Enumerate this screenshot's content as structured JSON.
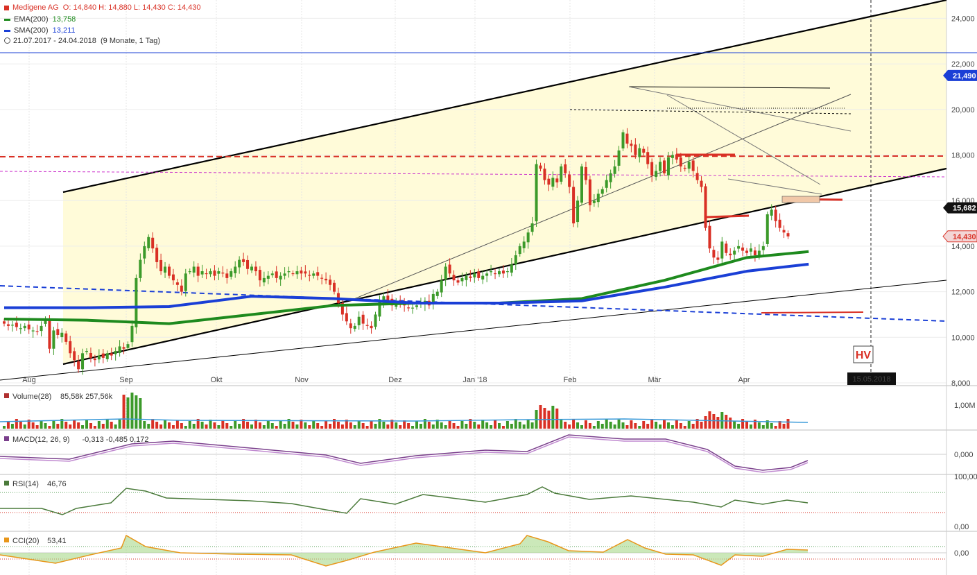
{
  "legend": {
    "instrument": "Medigene AG",
    "ohlc": "O: 14,840  H: 14,880  L: 14,430  C: 14,430",
    "ema_label": "EMA(200)",
    "ema_value": "13,758",
    "sma_label": "SMA(200)",
    "sma_value": "13,211",
    "range": "21.07.2017 - 24.04.2018",
    "range_detail": "(9 Monate, 1 Tag)"
  },
  "colors": {
    "up": "#3c9a2a",
    "down": "#d93025",
    "ema": "#1e8a1e",
    "sma": "#1a3fd6",
    "channel_fill": "#fffbd9",
    "macd": "#7a3f8c",
    "rsi": "#4a7a3a",
    "cci": "#e8961a"
  },
  "chart_data": {
    "type": "line",
    "x_labels": [
      "Aug",
      "Sep",
      "Okt",
      "Nov",
      "Dez",
      "Jan '18",
      "Feb",
      "Mär",
      "Apr"
    ],
    "x_marker_label": "15.05.2018",
    "annotation": "HV",
    "y_ticks": [
      "24,000",
      "22,000",
      "20,000",
      "18,000",
      "16,000",
      "14,000",
      "12,000",
      "10,000",
      "8,000"
    ],
    "ylim": [
      8,
      24.5
    ],
    "price_tags": [
      {
        "value": "21,490",
        "y": 21.49,
        "style": "blue"
      },
      {
        "value": "15,682",
        "y": 15.682,
        "style": "black"
      },
      {
        "value": "14,430",
        "y": 14.43,
        "style": "red"
      }
    ],
    "close": [
      10.6,
      10.5,
      10.55,
      10.45,
      10.4,
      10.5,
      10.35,
      10.3,
      10.25,
      10.5,
      10.8,
      9.5,
      10.3,
      10.1,
      10.2,
      9.8,
      9.3,
      9.0,
      8.6,
      9.3,
      9.4,
      9.1,
      9.0,
      9.2,
      9.1,
      9.3,
      9.2,
      9.4,
      9.6,
      9.5,
      9.7,
      10.5,
      12.6,
      13.4,
      14.0,
      14.4,
      13.9,
      13.3,
      12.9,
      13.1,
      12.7,
      12.5,
      12.3,
      12.0,
      12.8,
      12.9,
      13.1,
      12.7,
      12.9,
      12.8,
      12.9,
      12.7,
      12.9,
      12.8,
      12.6,
      12.9,
      13.1,
      13.4,
      13.3,
      13.0,
      13.1,
      12.9,
      12.5,
      12.6,
      12.7,
      12.8,
      12.6,
      12.7,
      12.8,
      12.9,
      12.8,
      12.9,
      12.8,
      12.8,
      12.7,
      12.8,
      12.7,
      12.6,
      12.5,
      12.3,
      12.0,
      11.5,
      11.0,
      10.7,
      10.4,
      10.5,
      10.9,
      10.6,
      10.5,
      10.4,
      11.0,
      11.6,
      11.8,
      11.6,
      11.4,
      11.6,
      11.5,
      11.4,
      11.3,
      11.3,
      11.4,
      11.5,
      11.6,
      11.4,
      11.9,
      12.0,
      12.5,
      13.1,
      12.8,
      12.5,
      12.4,
      12.6,
      12.7,
      12.6,
      12.8,
      12.6,
      12.7,
      12.8,
      12.9,
      12.8,
      12.9,
      12.8,
      12.9,
      13.2,
      13.6,
      14.0,
      14.2,
      14.6,
      15.0,
      17.6,
      17.4,
      16.9,
      16.7,
      17.0,
      16.8,
      17.5,
      17.2,
      16.6,
      15.0,
      16.0,
      17.5,
      16.9,
      15.8,
      16.0,
      16.3,
      16.5,
      16.9,
      17.2,
      17.5,
      18.2,
      19.0,
      18.5,
      18.4,
      18.0,
      18.3,
      18.1,
      17.6,
      17.1,
      17.3,
      17.7,
      17.2,
      17.9,
      18.0,
      17.8,
      17.5,
      17.4,
      17.7,
      17.3,
      16.9,
      16.6,
      14.8,
      13.9,
      13.5,
      13.4,
      14.2,
      13.7,
      13.6,
      13.8,
      14.0,
      13.8,
      13.7,
      13.9,
      13.6,
      13.8,
      14.0,
      15.4,
      15.6,
      15.1,
      14.8,
      14.6,
      14.43
    ],
    "series": [
      {
        "name": "EMA(200)",
        "x": [
          0,
          20,
          40,
          60,
          80,
          100,
          120,
          140,
          160,
          180,
          195
        ],
        "values": [
          10.8,
          10.75,
          10.6,
          11.0,
          11.4,
          11.5,
          11.5,
          11.7,
          12.5,
          13.5,
          13.76
        ]
      },
      {
        "name": "SMA(200)",
        "x": [
          0,
          20,
          40,
          60,
          80,
          100,
          120,
          140,
          160,
          180,
          195
        ],
        "values": [
          11.3,
          11.3,
          11.35,
          11.8,
          11.7,
          11.5,
          11.5,
          11.6,
          12.2,
          12.9,
          13.21
        ]
      }
    ],
    "subpanels": [
      {
        "name": "Volume(28)",
        "values_text": "85,58k  257,56k",
        "y_tick": "1,00M"
      },
      {
        "name": "MACD(12, 26, 9)",
        "values_text": "-0,313  -0,485  0,172",
        "y_tick": "0,000"
      },
      {
        "name": "RSI(14)",
        "values_text": "46,76",
        "y_ticks": [
          "100,00",
          "0,00"
        ]
      },
      {
        "name": "CCI(20)",
        "values_text": "53,41",
        "y_tick": "0,00"
      }
    ]
  }
}
